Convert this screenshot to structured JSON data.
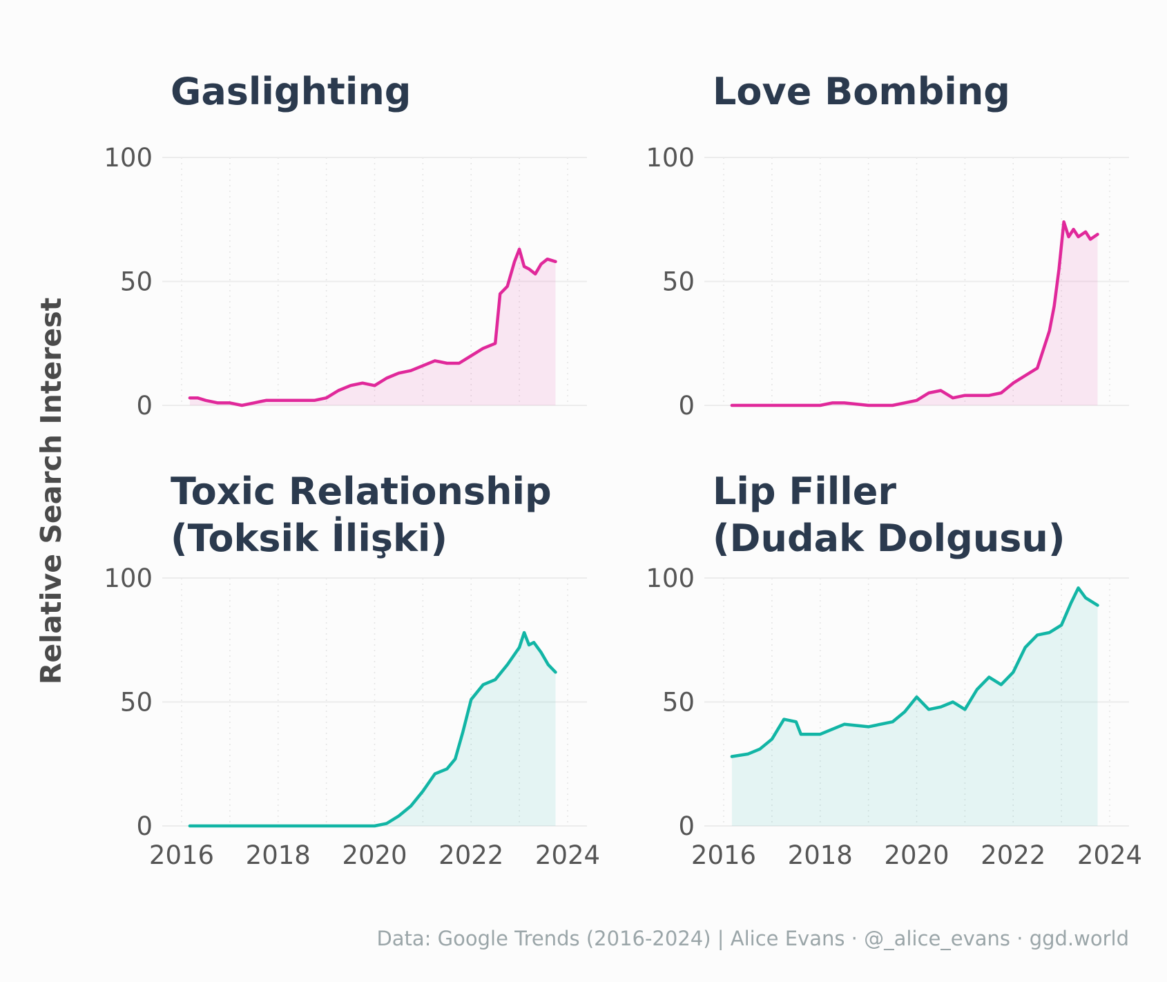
{
  "ylabel": "Relative Search Interest",
  "caption": "Data: Google Trends (2016-2024) | Alice Evans · @_alice_evans · ggd.world",
  "colors": {
    "magenta": "#e0289a",
    "teal": "#12b5a5",
    "title": "#2b3a4e",
    "grid": "#ececec"
  },
  "chart_data": [
    {
      "type": "area",
      "title_lines": [
        "Gaslighting"
      ],
      "color": "#e0289a",
      "xlim": [
        2016,
        2024
      ],
      "ylim": [
        0,
        100
      ],
      "xticks": [
        "2016",
        "2018",
        "2020",
        "2022",
        "2024"
      ],
      "yticks": [
        "0",
        "50",
        "100"
      ],
      "show_xticks": false,
      "x": [
        2016.17,
        2016.33,
        2016.5,
        2016.75,
        2017.0,
        2017.25,
        2017.5,
        2017.75,
        2018.0,
        2018.25,
        2018.5,
        2018.75,
        2019.0,
        2019.25,
        2019.5,
        2019.75,
        2020.0,
        2020.25,
        2020.5,
        2020.75,
        2021.0,
        2021.25,
        2021.5,
        2021.75,
        2022.0,
        2022.25,
        2022.5,
        2022.6,
        2022.75,
        2022.9,
        2023.0,
        2023.1,
        2023.2,
        2023.33,
        2023.45,
        2023.58,
        2023.75
      ],
      "y": [
        3,
        3,
        2,
        1,
        1,
        0,
        1,
        2,
        2,
        2,
        2,
        2,
        3,
        6,
        8,
        9,
        8,
        11,
        13,
        14,
        16,
        18,
        17,
        17,
        20,
        23,
        25,
        45,
        48,
        58,
        63,
        56,
        55,
        53,
        57,
        59,
        58
      ]
    },
    {
      "type": "area",
      "title_lines": [
        "Love Bombing"
      ],
      "color": "#e0289a",
      "xlim": [
        2016,
        2024
      ],
      "ylim": [
        0,
        100
      ],
      "xticks": [
        "2016",
        "2018",
        "2020",
        "2022",
        "2024"
      ],
      "yticks": [
        "0",
        "50",
        "100"
      ],
      "show_xticks": false,
      "x": [
        2016.17,
        2017.0,
        2017.5,
        2018.0,
        2018.25,
        2018.5,
        2019.0,
        2019.5,
        2019.75,
        2020.0,
        2020.25,
        2020.5,
        2020.75,
        2021.0,
        2021.25,
        2021.5,
        2021.75,
        2022.0,
        2022.25,
        2022.5,
        2022.75,
        2022.85,
        2022.95,
        2023.05,
        2023.15,
        2023.25,
        2023.35,
        2023.5,
        2023.6,
        2023.75
      ],
      "y": [
        0,
        0,
        0,
        0,
        1,
        1,
        0,
        0,
        1,
        2,
        5,
        6,
        3,
        4,
        4,
        4,
        5,
        9,
        12,
        15,
        30,
        40,
        55,
        74,
        68,
        71,
        68,
        70,
        67,
        69
      ]
    },
    {
      "type": "area",
      "title_lines": [
        "Toxic Relationship",
        "(Toksik İlişki)"
      ],
      "color": "#12b5a5",
      "xlim": [
        2016,
        2024
      ],
      "ylim": [
        0,
        100
      ],
      "xticks": [
        "2016",
        "2018",
        "2020",
        "2022",
        "2024"
      ],
      "yticks": [
        "0",
        "50",
        "100"
      ],
      "show_xticks": true,
      "x": [
        2016.17,
        2017.0,
        2018.0,
        2019.0,
        2019.75,
        2020.0,
        2020.25,
        2020.5,
        2020.75,
        2021.0,
        2021.25,
        2021.5,
        2021.67,
        2021.83,
        2022.0,
        2022.25,
        2022.5,
        2022.75,
        2023.0,
        2023.1,
        2023.2,
        2023.3,
        2023.45,
        2023.6,
        2023.75
      ],
      "y": [
        0,
        0,
        0,
        0,
        0,
        0,
        1,
        4,
        8,
        14,
        21,
        23,
        27,
        38,
        51,
        57,
        59,
        65,
        72,
        78,
        73,
        74,
        70,
        65,
        62
      ]
    },
    {
      "type": "area",
      "title_lines": [
        "Lip Filler",
        "(Dudak Dolgusu)"
      ],
      "color": "#12b5a5",
      "xlim": [
        2016,
        2024
      ],
      "ylim": [
        0,
        100
      ],
      "xticks": [
        "2016",
        "2018",
        "2020",
        "2022",
        "2024"
      ],
      "yticks": [
        "0",
        "50",
        "100"
      ],
      "show_xticks": true,
      "x": [
        2016.17,
        2016.5,
        2016.75,
        2017.0,
        2017.25,
        2017.5,
        2017.6,
        2018.0,
        2018.5,
        2019.0,
        2019.5,
        2019.75,
        2020.0,
        2020.25,
        2020.5,
        2020.75,
        2021.0,
        2021.25,
        2021.5,
        2021.75,
        2022.0,
        2022.25,
        2022.5,
        2022.75,
        2023.0,
        2023.2,
        2023.35,
        2023.5,
        2023.75
      ],
      "y": [
        28,
        29,
        31,
        35,
        43,
        42,
        37,
        37,
        41,
        40,
        42,
        46,
        52,
        47,
        48,
        50,
        47,
        55,
        60,
        57,
        62,
        72,
        77,
        78,
        81,
        90,
        96,
        92,
        89
      ]
    }
  ]
}
